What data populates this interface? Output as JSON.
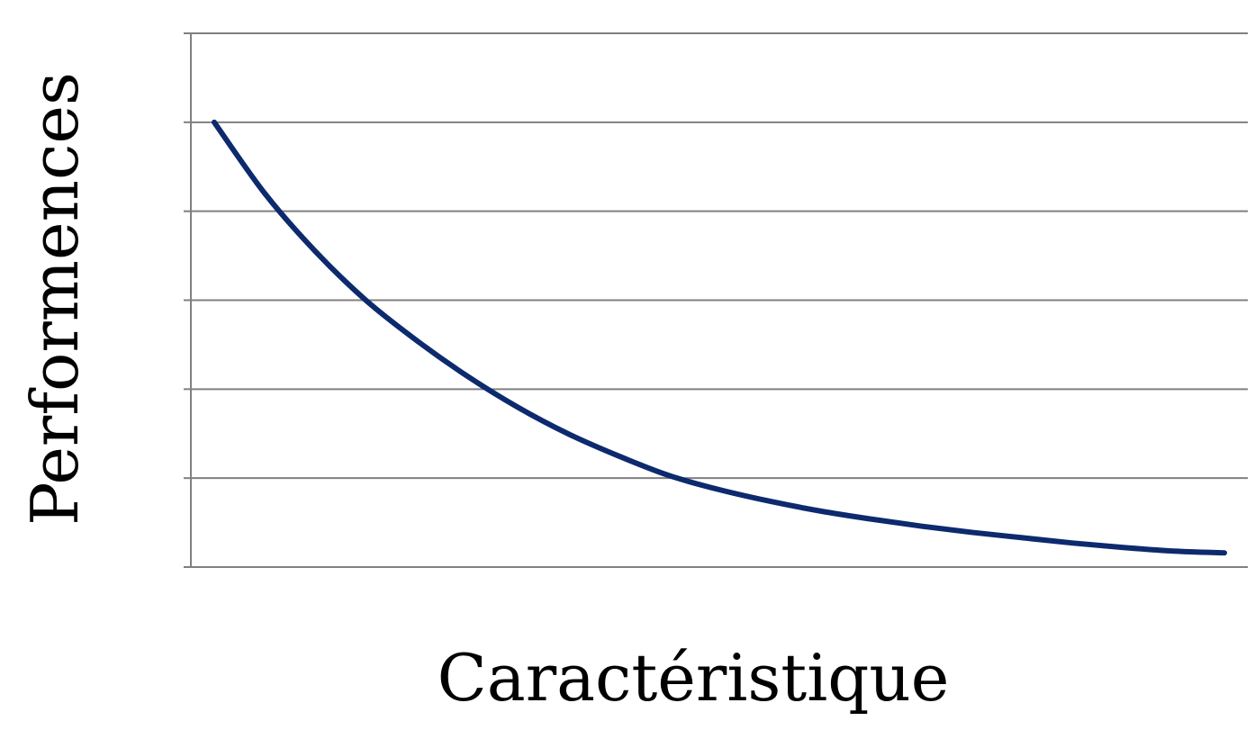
{
  "chart_data": {
    "type": "line",
    "title": "",
    "xlabel": "Caractéristique",
    "ylabel": "Performences",
    "grid": true,
    "legend": "none",
    "xlim": [
      0,
      20
    ],
    "ylim": [
      0,
      6
    ],
    "series": [
      {
        "color": "#0d2a6e",
        "x": [
          0,
          1,
          2,
          3,
          4,
          5,
          6,
          7,
          8,
          9,
          10,
          11,
          12,
          13,
          14,
          15,
          16,
          17,
          18,
          19,
          20
        ],
        "y": [
          5.0,
          4.2,
          3.55,
          3.0,
          2.55,
          2.15,
          1.8,
          1.5,
          1.25,
          1.03,
          0.87,
          0.74,
          0.63,
          0.54,
          0.46,
          0.39,
          0.33,
          0.27,
          0.22,
          0.18,
          0.16
        ]
      }
    ]
  }
}
